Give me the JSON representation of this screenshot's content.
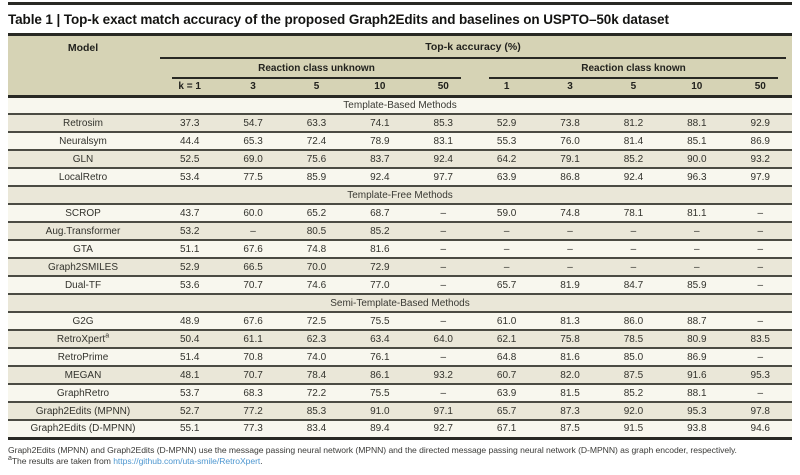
{
  "title": "Table 1 | Top-k exact match accuracy of the proposed Graph2Edits and baselines on USPTO–50k dataset",
  "table": {
    "model_header": "Model",
    "topk_header": "Top-k accuracy (%)",
    "group_headers": [
      "Reaction class unknown",
      "Reaction class known"
    ],
    "k_headers": [
      "k = 1",
      "3",
      "5",
      "10",
      "50",
      "1",
      "3",
      "5",
      "10",
      "50"
    ],
    "sections": [
      {
        "label": "Template-Based Methods",
        "rows": [
          {
            "model": "Retrosim",
            "values": [
              "37.3",
              "54.7",
              "63.3",
              "74.1",
              "85.3",
              "52.9",
              "73.8",
              "81.2",
              "88.1",
              "92.9"
            ]
          },
          {
            "model": "Neuralsym",
            "values": [
              "44.4",
              "65.3",
              "72.4",
              "78.9",
              "83.1",
              "55.3",
              "76.0",
              "81.4",
              "85.1",
              "86.9"
            ]
          },
          {
            "model": "GLN",
            "values": [
              "52.5",
              "69.0",
              "75.6",
              "83.7",
              "92.4",
              "64.2",
              "79.1",
              "85.2",
              "90.0",
              "93.2"
            ]
          },
          {
            "model": "LocalRetro",
            "values": [
              "53.4",
              "77.5",
              "85.9",
              "92.4",
              "97.7",
              "63.9",
              "86.8",
              "92.4",
              "96.3",
              "97.9"
            ]
          }
        ]
      },
      {
        "label": "Template-Free Methods",
        "rows": [
          {
            "model": "SCROP",
            "values": [
              "43.7",
              "60.0",
              "65.2",
              "68.7",
              "–",
              "59.0",
              "74.8",
              "78.1",
              "81.1",
              "–"
            ]
          },
          {
            "model": "Aug.Transformer",
            "values": [
              "53.2",
              "–",
              "80.5",
              "85.2",
              "–",
              "–",
              "–",
              "–",
              "–",
              "–"
            ]
          },
          {
            "model": "GTA",
            "values": [
              "51.1",
              "67.6",
              "74.8",
              "81.6",
              "–",
              "–",
              "–",
              "–",
              "–",
              "–"
            ]
          },
          {
            "model": "Graph2SMILES",
            "values": [
              "52.9",
              "66.5",
              "70.0",
              "72.9",
              "–",
              "–",
              "–",
              "–",
              "–",
              "–"
            ]
          },
          {
            "model": "Dual-TF",
            "values": [
              "53.6",
              "70.7",
              "74.6",
              "77.0",
              "–",
              "65.7",
              "81.9",
              "84.7",
              "85.9",
              "–"
            ]
          }
        ]
      },
      {
        "label": "Semi-Template-Based Methods",
        "rows": [
          {
            "model": "G2G",
            "values": [
              "48.9",
              "67.6",
              "72.5",
              "75.5",
              "–",
              "61.0",
              "81.3",
              "86.0",
              "88.7",
              "–"
            ]
          },
          {
            "model": "RetroXpert",
            "sup": "a",
            "values": [
              "50.4",
              "61.1",
              "62.3",
              "63.4",
              "64.0",
              "62.1",
              "75.8",
              "78.5",
              "80.9",
              "83.5"
            ]
          },
          {
            "model": "RetroPrime",
            "values": [
              "51.4",
              "70.8",
              "74.0",
              "76.1",
              "–",
              "64.8",
              "81.6",
              "85.0",
              "86.9",
              "–"
            ]
          },
          {
            "model": "MEGAN",
            "values": [
              "48.1",
              "70.7",
              "78.4",
              "86.1",
              "93.2",
              "60.7",
              "82.0",
              "87.5",
              "91.6",
              "95.3"
            ]
          },
          {
            "model": "GraphRetro",
            "values": [
              "53.7",
              "68.3",
              "72.2",
              "75.5",
              "–",
              "63.9",
              "81.5",
              "85.2",
              "88.1",
              "–"
            ]
          },
          {
            "model": "Graph2Edits (MPNN)",
            "values": [
              "52.7",
              "77.2",
              "85.3",
              "91.0",
              "97.1",
              "65.7",
              "87.3",
              "92.0",
              "95.3",
              "97.8"
            ]
          },
          {
            "model": "Graph2Edits (D-MPNN)",
            "values": [
              "55.1",
              "77.3",
              "83.4",
              "89.4",
              "92.7",
              "67.1",
              "87.5",
              "91.5",
              "93.8",
              "94.6"
            ]
          }
        ]
      }
    ]
  },
  "footnotes": {
    "line1": "Graph2Edits (MPNN) and Graph2Edits (D-MPNN) use the message passing neural network (MPNN) and the directed message passing neural network (D-MPNN) as graph encoder, respectively.",
    "line2_marker": "a",
    "line2_text": "The results are taken from ",
    "line2_link": "https://github.com/uta-smile/RetroXpert",
    "line2_suffix": "."
  },
  "colors": {
    "header_bg": "#d6d3b5",
    "row_beige": "#eae7d8",
    "row_cream": "#f8f7ee",
    "rule_heavy": "#292924",
    "rule_row": "#4b4b43",
    "text": "#2e2e28",
    "link": "#4e97d0"
  }
}
